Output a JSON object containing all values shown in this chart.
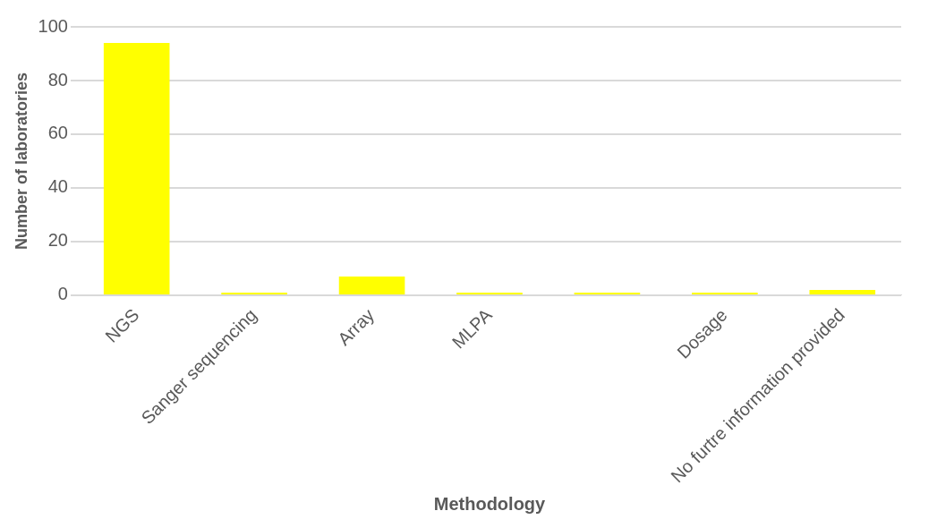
{
  "chart_data": {
    "type": "bar",
    "xlabel": "Methodology",
    "ylabel": "Number of laboratories",
    "categories": [
      "NGS",
      "Sanger sequencing",
      "Array",
      "MLPA",
      null,
      "Dosage",
      "No furtre information provided"
    ],
    "values": [
      94,
      1,
      7,
      1,
      1,
      1,
      2
    ],
    "color": "#ffff00",
    "ylim": [
      0,
      100
    ],
    "yticks": [
      0,
      20,
      40,
      60,
      80,
      100
    ],
    "grid": "y",
    "legend": false
  }
}
